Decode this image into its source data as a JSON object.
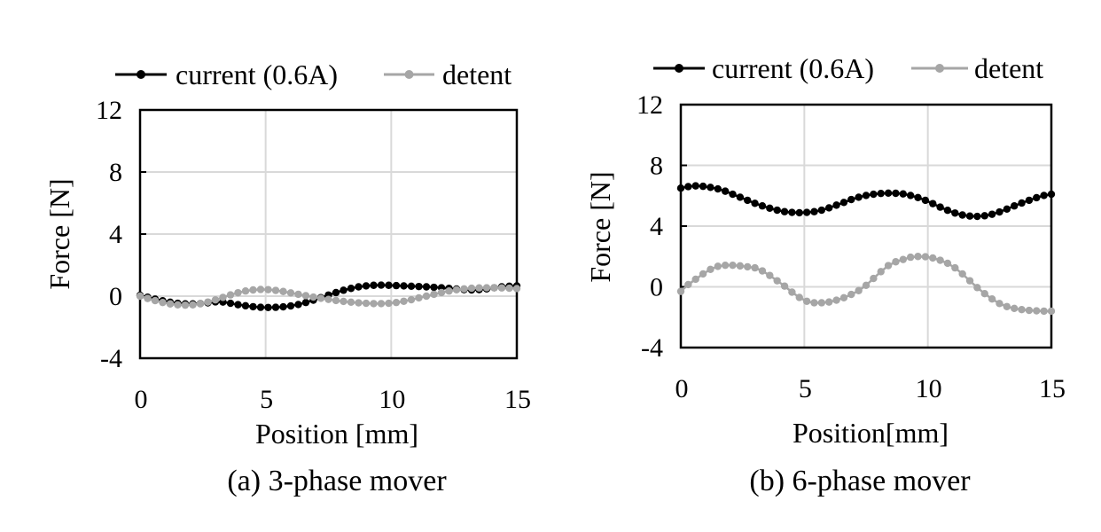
{
  "chart_data": [
    {
      "type": "line",
      "caption": "(a) 3-phase mover",
      "xlabel": "Position  [mm]",
      "ylabel": "Force [N]",
      "xlim": [
        0,
        15
      ],
      "ylim": [
        -4,
        12
      ],
      "xticks": [
        0,
        5,
        10,
        15
      ],
      "yticks": [
        -4,
        0,
        4,
        8,
        12
      ],
      "grid": true,
      "legend_position": "top",
      "series": [
        {
          "name": "current (0.6A)",
          "color": "#000000",
          "x": [
            0,
            0.3,
            0.6,
            0.9,
            1.2,
            1.5,
            1.8,
            2.1,
            2.4,
            2.7,
            3,
            3.3,
            3.6,
            3.9,
            4.2,
            4.5,
            4.8,
            5.1,
            5.4,
            5.7,
            6,
            6.3,
            6.6,
            6.9,
            7.2,
            7.5,
            7.8,
            8.1,
            8.4,
            8.7,
            9,
            9.3,
            9.6,
            9.9,
            10.2,
            10.5,
            10.8,
            11.1,
            11.4,
            11.7,
            12,
            12.3,
            12.6,
            12.9,
            13.2,
            13.5,
            13.8,
            14.1,
            14.4,
            14.7,
            15
          ],
          "y": [
            0.05,
            -0.07,
            -0.19,
            -0.3,
            -0.39,
            -0.46,
            -0.5,
            -0.5,
            -0.48,
            -0.43,
            -0.37,
            -0.38,
            -0.46,
            -0.55,
            -0.62,
            -0.68,
            -0.72,
            -0.73,
            -0.72,
            -0.69,
            -0.63,
            -0.54,
            -0.41,
            -0.26,
            -0.1,
            0.07,
            0.23,
            0.38,
            0.5,
            0.6,
            0.66,
            0.7,
            0.71,
            0.7,
            0.68,
            0.66,
            0.64,
            0.62,
            0.6,
            0.57,
            0.54,
            0.5,
            0.46,
            0.42,
            0.4,
            0.42,
            0.47,
            0.54,
            0.6,
            0.64,
            0.66
          ]
        },
        {
          "name": "detent",
          "color": "#a6a6a6",
          "x": [
            0,
            0.3,
            0.6,
            0.9,
            1.2,
            1.5,
            1.8,
            2.1,
            2.4,
            2.7,
            3,
            3.3,
            3.6,
            3.9,
            4.2,
            4.5,
            4.8,
            5.1,
            5.4,
            5.7,
            6,
            6.3,
            6.6,
            6.9,
            7.2,
            7.5,
            7.8,
            8.1,
            8.4,
            8.7,
            9,
            9.3,
            9.6,
            9.9,
            10.2,
            10.5,
            10.8,
            11.1,
            11.4,
            11.7,
            12,
            12.3,
            12.6,
            12.9,
            13.2,
            13.5,
            13.8,
            14.1,
            14.4,
            14.7,
            15
          ],
          "y": [
            0,
            -0.15,
            -0.29,
            -0.41,
            -0.5,
            -0.56,
            -0.58,
            -0.56,
            -0.49,
            -0.38,
            -0.24,
            -0.08,
            0.08,
            0.22,
            0.33,
            0.4,
            0.43,
            0.42,
            0.37,
            0.3,
            0.21,
            0.12,
            0.03,
            -0.06,
            -0.14,
            -0.21,
            -0.28,
            -0.34,
            -0.39,
            -0.43,
            -0.46,
            -0.48,
            -0.48,
            -0.46,
            -0.41,
            -0.33,
            -0.23,
            -0.11,
            0,
            0.12,
            0.23,
            0.33,
            0.41,
            0.47,
            0.51,
            0.53,
            0.54,
            0.54,
            0.53,
            0.51,
            0.49
          ]
        }
      ]
    },
    {
      "type": "line",
      "caption": "(b) 6-phase mover",
      "xlabel": "Position[mm]",
      "ylabel": "Force [N]",
      "xlim": [
        0,
        15
      ],
      "ylim": [
        -4,
        12
      ],
      "xticks": [
        0,
        5,
        10,
        15
      ],
      "yticks": [
        -4,
        0,
        4,
        8,
        12
      ],
      "grid": true,
      "legend_position": "top",
      "series": [
        {
          "name": "current (0.6A)",
          "color": "#000000",
          "x": [
            0,
            0.3,
            0.6,
            0.9,
            1.2,
            1.5,
            1.8,
            2.1,
            2.4,
            2.7,
            3,
            3.3,
            3.6,
            3.9,
            4.2,
            4.5,
            4.8,
            5.1,
            5.4,
            5.7,
            6,
            6.3,
            6.6,
            6.9,
            7.2,
            7.5,
            7.8,
            8.1,
            8.4,
            8.7,
            9,
            9.3,
            9.6,
            9.9,
            10.2,
            10.5,
            10.8,
            11.1,
            11.4,
            11.7,
            12,
            12.3,
            12.6,
            12.9,
            13.2,
            13.5,
            13.8,
            14.1,
            14.4,
            14.7,
            15
          ],
          "y": [
            6.5,
            6.6,
            6.65,
            6.62,
            6.55,
            6.45,
            6.3,
            6.1,
            5.9,
            5.7,
            5.5,
            5.33,
            5.18,
            5.05,
            4.95,
            4.9,
            4.88,
            4.9,
            4.95,
            5.05,
            5.2,
            5.38,
            5.56,
            5.75,
            5.9,
            6.02,
            6.1,
            6.15,
            6.17,
            6.16,
            6.12,
            6.02,
            5.88,
            5.7,
            5.48,
            5.25,
            5.04,
            4.86,
            4.73,
            4.66,
            4.64,
            4.68,
            4.78,
            4.93,
            5.12,
            5.33,
            5.52,
            5.7,
            5.87,
            6.02,
            6.1
          ]
        },
        {
          "name": "detent",
          "color": "#a6a6a6",
          "x": [
            0,
            0.3,
            0.6,
            0.9,
            1.2,
            1.5,
            1.8,
            2.1,
            2.4,
            2.7,
            3,
            3.3,
            3.6,
            3.9,
            4.2,
            4.5,
            4.8,
            5.1,
            5.4,
            5.7,
            6,
            6.3,
            6.6,
            6.9,
            7.2,
            7.5,
            7.8,
            8.1,
            8.4,
            8.7,
            9,
            9.3,
            9.6,
            9.9,
            10.2,
            10.5,
            10.8,
            11.1,
            11.4,
            11.7,
            12,
            12.3,
            12.6,
            12.9,
            13.2,
            13.5,
            13.8,
            14.1,
            14.4,
            14.7,
            15
          ],
          "y": [
            -0.3,
            0.15,
            0.5,
            0.85,
            1.15,
            1.35,
            1.42,
            1.42,
            1.38,
            1.32,
            1.25,
            1.05,
            0.75,
            0.4,
            0.05,
            -0.35,
            -0.7,
            -0.95,
            -1.05,
            -1.05,
            -1.0,
            -0.88,
            -0.72,
            -0.5,
            -0.25,
            0.1,
            0.55,
            1.0,
            1.4,
            1.65,
            1.8,
            1.95,
            2.0,
            1.98,
            1.9,
            1.75,
            1.55,
            1.25,
            0.85,
            0.4,
            -0.05,
            -0.45,
            -0.8,
            -1.1,
            -1.3,
            -1.42,
            -1.5,
            -1.55,
            -1.58,
            -1.6,
            -1.6
          ]
        }
      ]
    }
  ]
}
